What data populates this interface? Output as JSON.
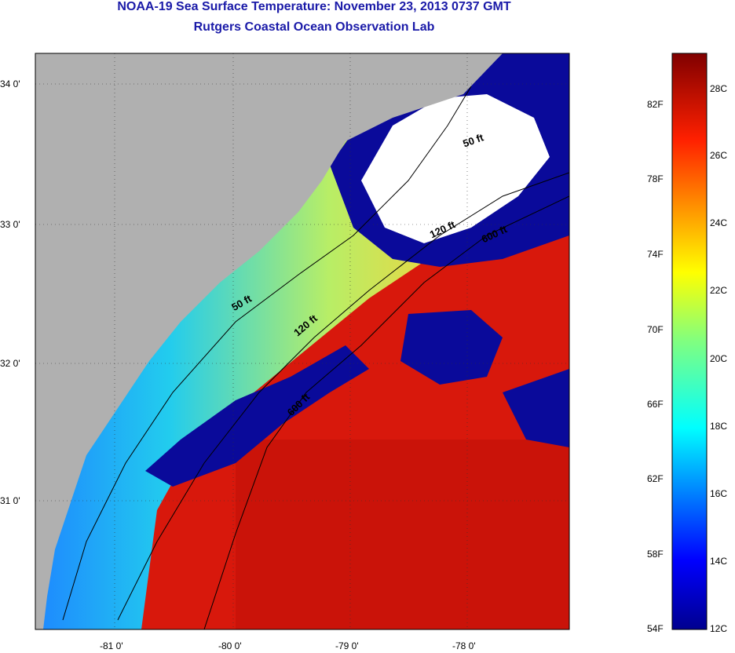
{
  "title": {
    "line1": "NOAA-19 Sea Surface Temperature:  November 23, 2013 0737 GMT",
    "line2": "Rutgers Coastal Ocean Observation Lab"
  },
  "map": {
    "lat_ticks": [
      "34 0'",
      "33 0'",
      "32 0'",
      "31 0'"
    ],
    "lon_ticks": [
      "-81 0'",
      "-80 0'",
      "-79 0'",
      "-78 0'"
    ],
    "isobaths": [
      "50 ft",
      "120 ft",
      "600 ft",
      "50 ft",
      "120 ft",
      "600 ft"
    ],
    "colors": {
      "land": "#b0b0b0",
      "cloud": "#ffffff",
      "cold": "#0a0a9a",
      "warm": "#d8180c"
    }
  },
  "colorbar": {
    "fahrenheit_labels": [
      "82F",
      "78F",
      "74F",
      "70F",
      "66F",
      "62F",
      "58F",
      "54F"
    ],
    "celsius_labels": [
      "28C",
      "26C",
      "24C",
      "22C",
      "20C",
      "18C",
      "16C",
      "14C",
      "12C"
    ]
  }
}
